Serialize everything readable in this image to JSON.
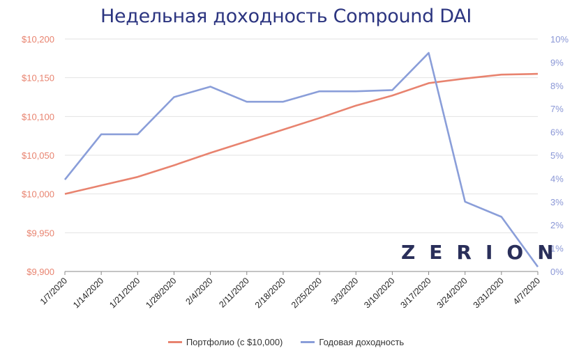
{
  "title": "Недельная доходность Compound DAI",
  "logo_text": "ZERION",
  "colors": {
    "portfolio": "#e8836f",
    "yield": "#8a9ed9",
    "title": "#2c3580",
    "grid": "#e2e2e2",
    "axis": "#888888"
  },
  "legend": [
    {
      "label": "Портфолио (с $10,000)",
      "color": "#e8836f"
    },
    {
      "label": "Годовая доходность",
      "color": "#8a9ed9"
    }
  ],
  "chart_data": {
    "type": "line",
    "title": "Недельная доходность Compound DAI",
    "xlabel": "",
    "ylabel": "",
    "categories": [
      "1/7/2020",
      "1/14/2020",
      "1/21/2020",
      "1/28/2020",
      "2/4/2020",
      "2/11/2020",
      "2/18/2020",
      "2/25/2020",
      "3/3/2020",
      "3/10/2020",
      "3/17/2020",
      "3/24/2020",
      "3/31/2020",
      "4/7/2020"
    ],
    "series": [
      {
        "name": "Портфолио (с $10,000)",
        "axis": "left",
        "values": [
          10000,
          10011,
          10022,
          10037,
          10053,
          10068,
          10083,
          10098,
          10114,
          10127,
          10143,
          10149,
          10154,
          10155
        ]
      },
      {
        "name": "Годовая доходность",
        "axis": "right",
        "values": [
          3.95,
          5.9,
          5.9,
          7.5,
          7.95,
          7.3,
          7.3,
          7.75,
          7.75,
          7.8,
          9.4,
          3.0,
          2.35,
          0.2
        ]
      }
    ],
    "ylim_left": [
      9900,
      10200
    ],
    "ylim_right": [
      0,
      10
    ],
    "yticks_left": [
      "$10,200",
      "$10,150",
      "$10,100",
      "$10,050",
      "$10,000",
      "$9,950",
      "$9,900"
    ],
    "yticks_right": [
      "10%",
      "9%",
      "8%",
      "7%",
      "6%",
      "5%",
      "4%",
      "3%",
      "2%",
      "1%",
      "0%"
    ],
    "grid": true,
    "legend_position": "bottom"
  }
}
